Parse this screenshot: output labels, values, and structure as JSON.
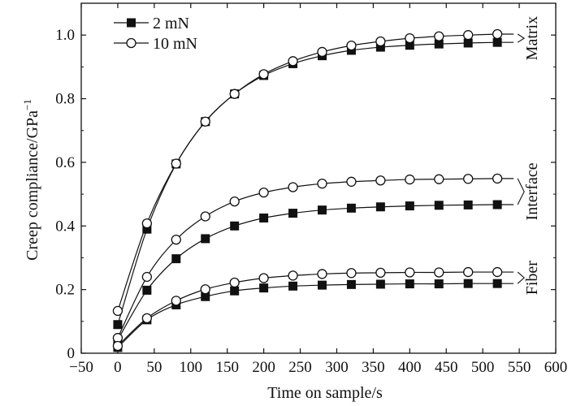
{
  "chart_data": {
    "type": "line",
    "title": "",
    "xlabel": "Time on sample/s",
    "ylabel_main": "Creep compliance/GPa",
    "ylabel_sup": "−1",
    "xlim": [
      -50,
      600
    ],
    "ylim": [
      0,
      1.1
    ],
    "xticks": [
      -50,
      0,
      50,
      100,
      150,
      200,
      250,
      300,
      350,
      400,
      450,
      500,
      550,
      600
    ],
    "xtick_labels": [
      "−50",
      "0",
      "50",
      "100",
      "150",
      "200",
      "250",
      "300",
      "350",
      "400",
      "450",
      "500",
      "550",
      "600"
    ],
    "yticks": [
      0,
      0.2,
      0.4,
      0.6,
      0.8,
      1.0
    ],
    "ytick_labels": [
      "0",
      "0.2",
      "0.4",
      "0.6",
      "0.8",
      "1.0"
    ],
    "grid": false,
    "legend": {
      "position": "top-left",
      "entries": [
        {
          "label": "2 mN",
          "marker": "filled-square"
        },
        {
          "label": "10 mN",
          "marker": "open-circle"
        }
      ]
    },
    "x": [
      0,
      40,
      80,
      120,
      160,
      200,
      240,
      280,
      320,
      360,
      400,
      440,
      480,
      520
    ],
    "series": [
      {
        "group": "Matrix",
        "load": "2 mN",
        "marker": "filled-square",
        "values": [
          0.09,
          0.39,
          0.595,
          0.728,
          0.815,
          0.873,
          0.91,
          0.935,
          0.952,
          0.962,
          0.968,
          0.972,
          0.975,
          0.977
        ]
      },
      {
        "group": "Matrix",
        "load": "10 mN",
        "marker": "open-circle",
        "values": [
          0.133,
          0.408,
          0.596,
          0.728,
          0.815,
          0.877,
          0.918,
          0.947,
          0.967,
          0.98,
          0.99,
          0.996,
          1.0,
          1.003
        ]
      },
      {
        "group": "Interface",
        "load": "2 mN",
        "marker": "filled-square",
        "values": [
          0.042,
          0.198,
          0.297,
          0.36,
          0.4,
          0.425,
          0.44,
          0.45,
          0.456,
          0.46,
          0.463,
          0.465,
          0.466,
          0.467
        ]
      },
      {
        "group": "Interface",
        "load": "10 mN",
        "marker": "open-circle",
        "values": [
          0.048,
          0.24,
          0.357,
          0.43,
          0.477,
          0.505,
          0.522,
          0.533,
          0.539,
          0.543,
          0.546,
          0.547,
          0.548,
          0.549
        ]
      },
      {
        "group": "Fiber",
        "load": "2 mN",
        "marker": "filled-square",
        "values": [
          0.018,
          0.105,
          0.152,
          0.178,
          0.196,
          0.205,
          0.211,
          0.214,
          0.216,
          0.217,
          0.218,
          0.218,
          0.219,
          0.219
        ]
      },
      {
        "group": "Fiber",
        "load": "10 mN",
        "marker": "open-circle",
        "values": [
          0.023,
          0.11,
          0.165,
          0.201,
          0.222,
          0.236,
          0.244,
          0.249,
          0.252,
          0.253,
          0.254,
          0.254,
          0.255,
          0.255
        ]
      }
    ],
    "group_labels": [
      "Matrix",
      "Interface",
      "Fiber"
    ]
  }
}
